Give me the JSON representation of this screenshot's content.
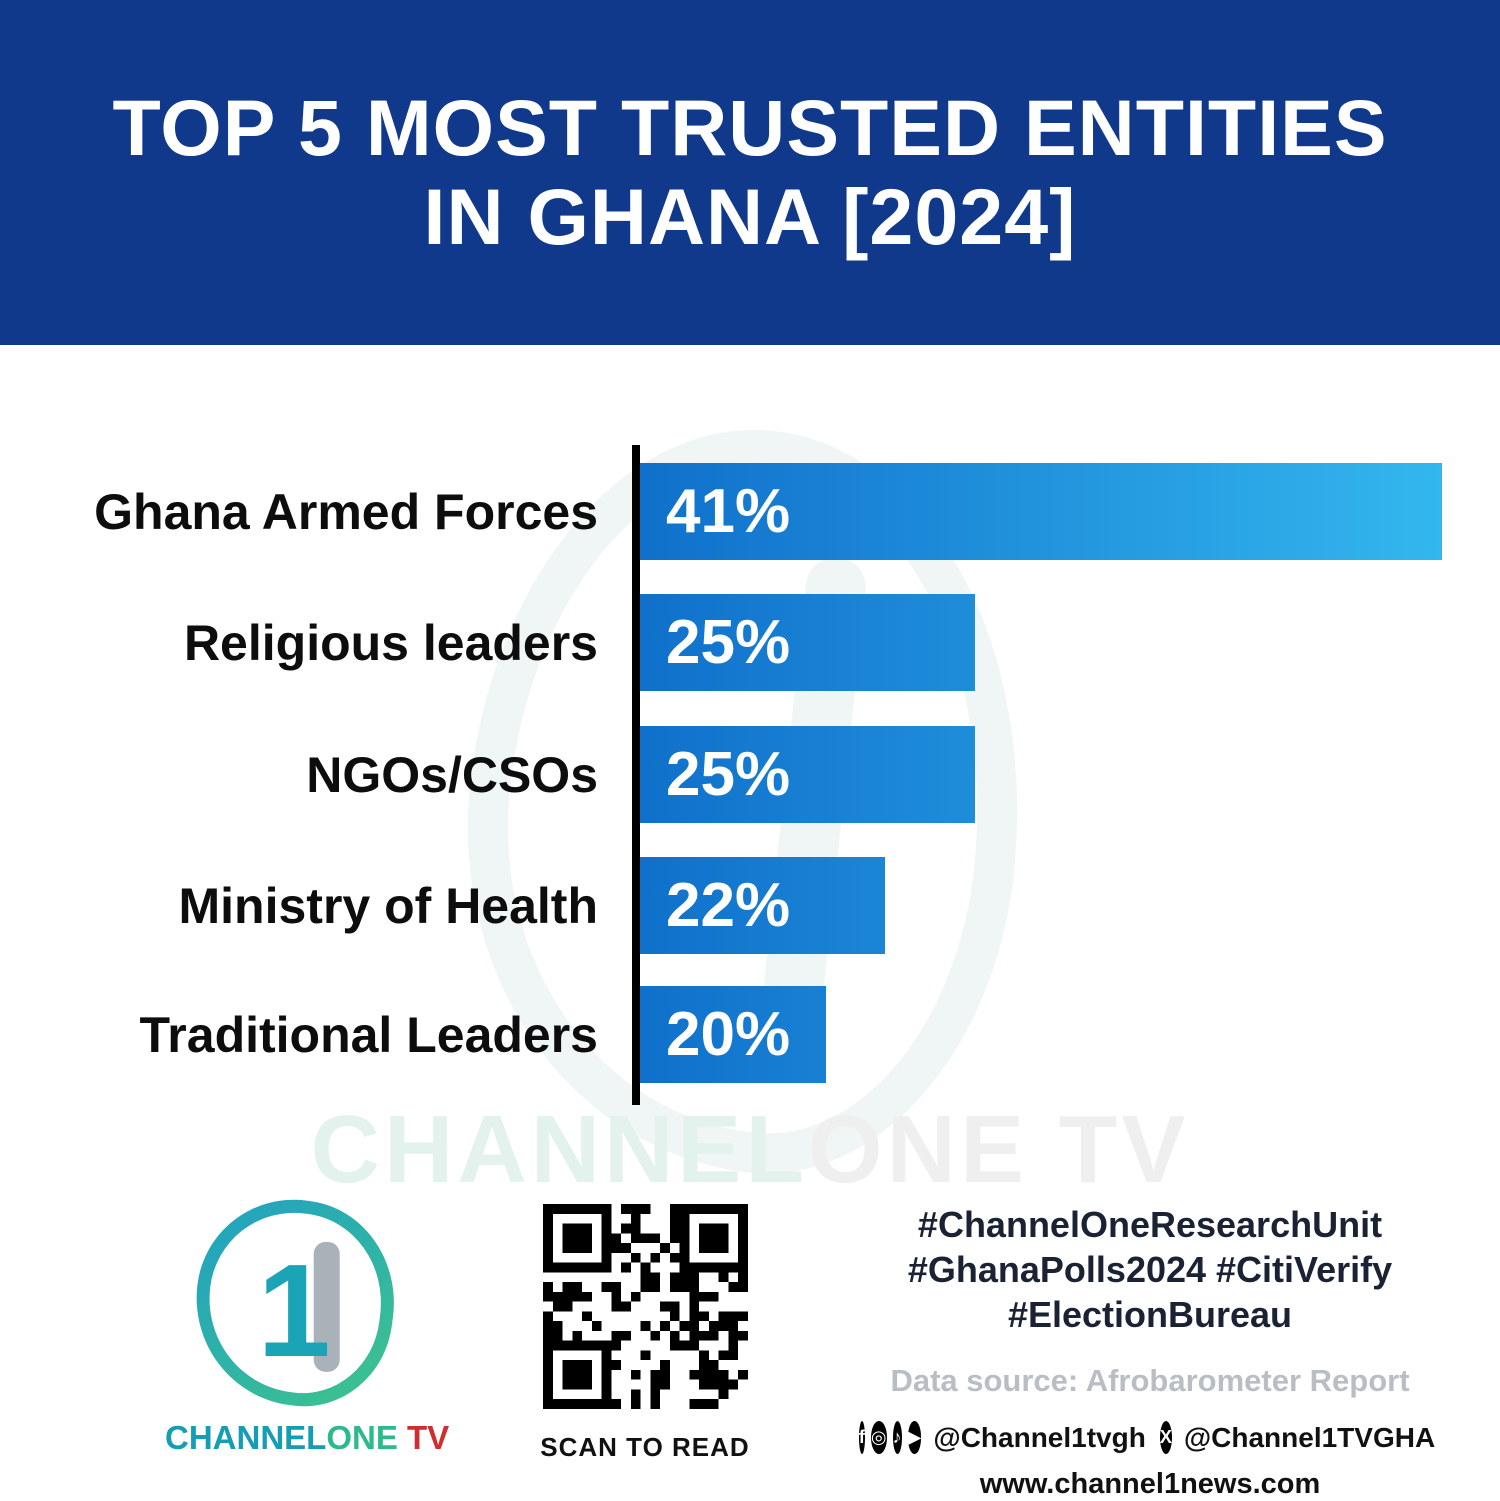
{
  "header": {
    "title_line1": "TOP 5 MOST TRUSTED ENTITIES",
    "title_line2": "IN GHANA [2024]"
  },
  "chart_data": {
    "type": "bar",
    "orientation": "horizontal",
    "title": "Top 5 Most Trusted Entities in Ghana [2024]",
    "categories": [
      "Ghana Armed Forces",
      "Religious leaders",
      "NGOs/CSOs",
      "Ministry of Health",
      "Traditional Leaders"
    ],
    "values": [
      41,
      25,
      25,
      22,
      20
    ],
    "value_labels": [
      "41%",
      "25%",
      "25%",
      "22%",
      "20%"
    ],
    "bar_display_widths_pct": [
      100,
      41.8,
      41.8,
      30.5,
      23.2
    ],
    "bar_gradient": [
      "#1070cb",
      "#33b7ee"
    ],
    "axis_color": "#000000",
    "grid": false,
    "legend": "none",
    "value_label_position": "inside-left"
  },
  "watermark": {
    "part1": "CHANNEL",
    "part2": "ONE TV"
  },
  "footer": {
    "logo": {
      "digit": "1",
      "brand_part1": "CHANNEL",
      "brand_part2": "ONE",
      "brand_part3": " TV"
    },
    "qr_caption": "SCAN TO READ",
    "hashtags_line1": "#ChannelOneResearchUnit",
    "hashtags_line2": "#GhanaPolls2024 #CitiVerify",
    "hashtags_line3": "#ElectionBureau",
    "data_source": "Data source: Afrobarometer Report",
    "social_icons": [
      "facebook-icon",
      "instagram-icon",
      "tiktok-icon",
      "youtube-icon"
    ],
    "social_handle1": "@Channel1tvgh",
    "social_handle2": "@Channel1TVGHA",
    "website": "www.channel1news.com"
  },
  "colors": {
    "header_bg": "#11398b",
    "bar_start": "#1070cb",
    "bar_end": "#33b7ee",
    "hashtag_text": "#1a2233",
    "data_source_text": "#b9bec5",
    "brand_teal": "#149db4",
    "brand_green": "#2cb98c",
    "brand_red": "#cf2e2e"
  }
}
